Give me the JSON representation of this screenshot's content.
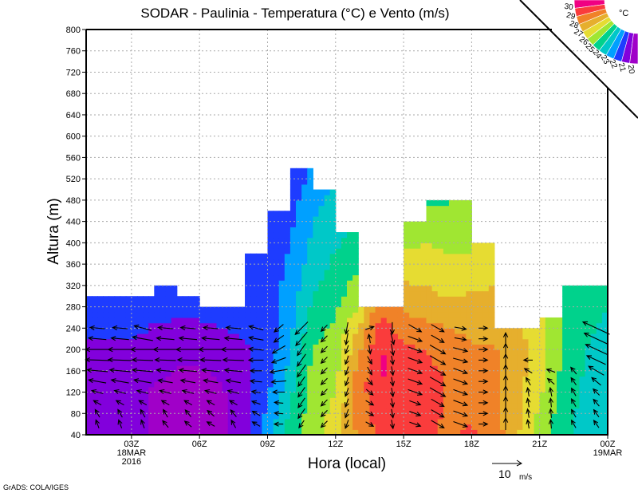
{
  "chart_data": {
    "type": "heatmap",
    "title": "SODAR - Paulinia - Temperatura (°C) e Vento (m/s)",
    "xlabel": "Hora (local)",
    "ylabel": "Altura (m)",
    "ylim": [
      40,
      800
    ],
    "xlim_hours": [
      1,
      24
    ],
    "yticks": [
      40,
      80,
      120,
      160,
      200,
      240,
      280,
      320,
      360,
      400,
      440,
      480,
      520,
      560,
      600,
      640,
      680,
      720,
      760,
      800
    ],
    "xticks": [
      {
        "hour": 3,
        "label": "03Z",
        "sub1": "18MAR",
        "sub2": "2016"
      },
      {
        "hour": 6,
        "label": "06Z"
      },
      {
        "hour": 9,
        "label": "09Z"
      },
      {
        "hour": 12,
        "label": "12Z"
      },
      {
        "hour": 15,
        "label": "15Z"
      },
      {
        "hour": 18,
        "label": "18Z"
      },
      {
        "hour": 21,
        "label": "21Z"
      },
      {
        "hour": 24,
        "label": "00Z",
        "sub1": "19MAR"
      }
    ],
    "grid": true,
    "colorbar": {
      "units": "°C",
      "levels": [
        20,
        21,
        22,
        23,
        24,
        25,
        26,
        27,
        28,
        29,
        30
      ],
      "colors": [
        "#a000c8",
        "#8200dc",
        "#1e3cff",
        "#00a0ff",
        "#00c8c8",
        "#00d28c",
        "#a0e632",
        "#e6dc32",
        "#e6af2d",
        "#f08228",
        "#fa3c3c",
        "#f00082"
      ]
    },
    "column_tops_m": [
      300,
      300,
      300,
      320,
      300,
      280,
      280,
      380,
      460,
      540,
      500,
      420,
      280,
      280,
      440,
      480,
      480,
      400,
      240,
      240,
      260,
      320,
      320
    ],
    "temperature_heights_m": [
      40,
      80,
      120,
      160,
      200,
      240,
      280,
      320,
      360,
      400,
      440,
      480,
      520,
      560
    ],
    "temperature": [
      [
        20.5,
        20.5,
        20.5,
        20.5,
        20.6,
        21.3,
        21.5,
        21.5,
        21.5,
        21.5,
        21.5,
        21.5,
        21.5,
        21.5
      ],
      [
        20.4,
        20.4,
        20.5,
        20.5,
        20.7,
        21.2,
        21.5,
        21.5,
        21.5,
        21.5,
        21.5,
        21.5,
        21.5,
        21.5
      ],
      [
        20.5,
        20.5,
        20.5,
        20.6,
        20.8,
        21.3,
        21.5,
        21.5,
        21.5,
        21.5,
        21.5,
        21.5,
        21.5,
        21.5
      ],
      [
        19.8,
        19.7,
        19.8,
        20.3,
        20.6,
        20.9,
        21.3,
        21.5,
        21.5,
        21.5,
        21.5,
        21.5,
        21.5,
        21.5
      ],
      [
        19.7,
        19.6,
        19.7,
        19.9,
        20.5,
        20.8,
        21.3,
        21.5,
        21.5,
        21.5,
        21.5,
        21.5,
        21.5,
        21.5
      ],
      [
        19.8,
        19.7,
        19.7,
        19.9,
        20.5,
        20.8,
        21.3,
        21.5,
        21.5,
        21.5,
        21.5,
        21.5,
        21.5,
        21.5
      ],
      [
        19.8,
        19.8,
        19.9,
        20.2,
        20.6,
        21.0,
        21.3,
        21.5,
        21.5,
        21.5,
        21.5,
        21.5,
        21.5,
        21.5
      ],
      [
        20.6,
        20.7,
        20.7,
        20.8,
        20.9,
        21.2,
        21.4,
        21.5,
        21.5,
        21.5,
        21.5,
        21.5,
        21.5,
        21.5
      ],
      [
        22.5,
        22.2,
        21.8,
        21.5,
        21.4,
        21.4,
        21.4,
        21.4,
        21.4,
        21.4,
        21.4,
        21.3,
        21.2,
        21.2
      ],
      [
        24.5,
        24.2,
        23.8,
        23.3,
        23.0,
        22.8,
        22.6,
        22.4,
        22.2,
        22.0,
        21.8,
        21.6,
        21.5,
        21.4
      ],
      [
        25.5,
        25.5,
        25.4,
        25.3,
        25.0,
        24.6,
        24.2,
        23.8,
        23.5,
        23.2,
        23.0,
        22.6,
        22.2,
        22.0
      ],
      [
        26.5,
        26.3,
        26.0,
        25.7,
        25.5,
        25.2,
        24.8,
        24.5,
        24.2,
        23.9,
        23.6,
        23.4,
        23.2,
        23.0
      ],
      [
        28.2,
        28.3,
        28.5,
        28.3,
        27.8,
        27.0,
        26.0,
        25.4,
        24.8,
        24.3,
        24.0,
        24.0,
        24.0,
        24.0
      ],
      [
        29.3,
        29.6,
        29.9,
        30.1,
        30.1,
        29.5,
        28.8,
        28.0,
        27.0,
        26.0,
        25.5,
        25.0,
        25.0,
        25.0
      ],
      [
        29.5,
        29.7,
        29.6,
        29.5,
        29.2,
        28.5,
        27.8,
        27.1,
        26.5,
        25.8,
        25.2,
        24.8,
        24.8,
        24.8
      ],
      [
        29.3,
        29.4,
        29.3,
        29.2,
        29.0,
        28.3,
        27.5,
        27.0,
        26.5,
        26.0,
        25.3,
        24.8,
        24.8,
        24.8
      ],
      [
        28.6,
        28.8,
        28.9,
        28.9,
        28.6,
        28.0,
        27.2,
        26.6,
        26.2,
        25.8,
        25.4,
        24.9,
        24.9,
        24.9
      ],
      [
        29.3,
        28.7,
        28.3,
        28.3,
        28.1,
        27.8,
        27.4,
        26.8,
        26.3,
        25.8,
        25.5,
        25.5,
        25.5,
        25.5
      ],
      [
        28.5,
        28.4,
        28.3,
        28.3,
        28.1,
        27.8,
        27.4,
        27.0,
        27.0,
        27.0,
        27.0,
        27.0,
        27.0,
        27.0
      ],
      [
        27.2,
        27.2,
        27.3,
        27.4,
        27.5,
        27.2,
        27.0,
        27.0,
        27.0,
        27.0,
        27.0,
        27.0,
        27.0,
        27.0
      ],
      [
        25.5,
        25.8,
        26.2,
        26.4,
        26.5,
        26.4,
        26.2,
        26.0,
        26.0,
        26.0,
        26.0,
        26.0,
        26.0,
        26.0
      ],
      [
        24.3,
        24.5,
        24.7,
        24.8,
        24.9,
        25.0,
        24.9,
        24.8,
        24.8,
        24.8,
        24.8,
        24.8,
        24.8,
        24.8
      ],
      [
        23.5,
        23.6,
        23.8,
        23.9,
        24.0,
        24.2,
        24.4,
        24.5,
        24.5,
        24.5,
        24.5,
        24.5,
        24.5,
        24.5
      ],
      [
        23.0,
        23.1,
        23.3,
        23.4,
        23.6,
        23.8,
        24.0,
        24.1,
        24.1,
        24.1,
        24.1,
        24.1,
        24.1,
        24.1
      ]
    ],
    "wind_heights_m": [
      60,
      80,
      100,
      120,
      140,
      160,
      180,
      200,
      220,
      240
    ],
    "wind": [
      {
        "hour": 1,
        "dir": [
          110,
          120,
          150,
          165,
          170,
          175,
          178,
          180,
          175,
          175
        ],
        "speed": [
          3,
          3,
          3,
          4,
          6,
          7,
          8,
          8,
          6,
          5
        ]
      },
      {
        "hour": 2,
        "dir": [
          110,
          120,
          150,
          165,
          170,
          175,
          178,
          180,
          175,
          175
        ],
        "speed": [
          3,
          3,
          3,
          4,
          6,
          7,
          8,
          8,
          6,
          5
        ]
      },
      {
        "hour": 3,
        "dir": [
          110,
          120,
          150,
          165,
          170,
          175,
          178,
          180,
          170,
          165
        ],
        "speed": [
          3,
          3,
          3,
          4,
          6,
          7,
          7,
          8,
          7,
          6
        ]
      },
      {
        "hour": 4,
        "dir": [
          130,
          120,
          150,
          165,
          170,
          175,
          178,
          180,
          175,
          175
        ],
        "speed": [
          3,
          3,
          3,
          4,
          5,
          6,
          7,
          8,
          6,
          5
        ]
      },
      {
        "hour": 5,
        "dir": [
          140,
          130,
          150,
          165,
          170,
          175,
          178,
          180,
          175,
          175
        ],
        "speed": [
          3,
          3,
          3,
          4,
          5,
          6,
          7,
          8,
          6,
          5
        ]
      },
      {
        "hour": 6,
        "dir": [
          150,
          140,
          150,
          165,
          170,
          175,
          178,
          180,
          175,
          175
        ],
        "speed": [
          3,
          3,
          3,
          4,
          5,
          6,
          7,
          8,
          6,
          5
        ]
      },
      {
        "hour": 7,
        "dir": [
          120,
          130,
          150,
          165,
          170,
          175,
          178,
          180,
          175,
          175
        ],
        "speed": [
          3,
          3,
          3,
          4,
          5,
          6,
          7,
          8,
          6,
          5
        ]
      },
      {
        "hour": 8,
        "dir": [
          150,
          150,
          160,
          170,
          175,
          180,
          180,
          175,
          170,
          165
        ],
        "speed": [
          3,
          3,
          3,
          3,
          4,
          4,
          5,
          5,
          5,
          5
        ]
      },
      {
        "hour": 9,
        "dir": [
          180,
          175,
          175,
          180,
          185,
          190,
          200,
          210,
          215,
          220
        ],
        "speed": [
          3,
          3,
          3,
          4,
          5,
          6,
          5,
          5,
          4,
          4
        ]
      },
      {
        "hour": 10,
        "dir": [
          235,
          235,
          235,
          235,
          235,
          235,
          235,
          235,
          230,
          225
        ],
        "speed": [
          3,
          4,
          4,
          4,
          4,
          5,
          5,
          5,
          6,
          6
        ]
      },
      {
        "hour": 11,
        "dir": [
          225,
          225,
          225,
          225,
          225,
          225,
          225,
          225,
          225,
          225
        ],
        "speed": [
          3,
          3,
          3,
          3,
          3,
          3,
          3,
          3,
          3,
          3
        ]
      },
      {
        "hour": 12,
        "dir": [
          250,
          250,
          250,
          250,
          250,
          250,
          250,
          250,
          260,
          260
        ],
        "speed": [
          3,
          3,
          3,
          3,
          3,
          3,
          3,
          3,
          4,
          4
        ]
      },
      {
        "hour": 13,
        "dir": [
          330,
          330,
          330,
          320,
          310,
          300,
          300,
          280,
          100,
          20
        ],
        "speed": [
          3,
          3,
          3,
          3,
          3,
          3,
          3,
          3,
          3,
          3
        ]
      },
      {
        "hour": 14,
        "dir": [
          280,
          280,
          280,
          280,
          280,
          280,
          280,
          280,
          285,
          270
        ],
        "speed": [
          3,
          3,
          3,
          3,
          3,
          3,
          3,
          4,
          4,
          4
        ]
      },
      {
        "hour": 15,
        "dir": [
          340,
          340,
          340,
          340,
          340,
          340,
          340,
          340,
          340,
          330
        ],
        "speed": [
          4,
          4,
          4,
          5,
          5,
          5,
          5,
          5,
          5,
          5
        ]
      },
      {
        "hour": 16,
        "dir": [
          330,
          330,
          330,
          330,
          330,
          330,
          330,
          330,
          330,
          330
        ],
        "speed": [
          5,
          5,
          5,
          6,
          6,
          6,
          6,
          6,
          5,
          5
        ]
      },
      {
        "hour": 17,
        "dir": [
          340,
          340,
          340,
          340,
          340,
          340,
          345,
          345,
          350,
          350
        ],
        "speed": [
          5,
          5,
          5,
          5,
          5,
          5,
          5,
          5,
          4,
          4
        ]
      },
      {
        "hour": 18,
        "dir": [
          0,
          0,
          0,
          0,
          0,
          0,
          0,
          0,
          0,
          0
        ],
        "speed": [
          3,
          3,
          3,
          3,
          3,
          3,
          3,
          3,
          3,
          3
        ]
      },
      {
        "hour": 19,
        "dir": [
          90,
          90,
          90,
          90,
          90,
          90,
          90,
          90,
          90,
          90
        ],
        "speed": [
          4,
          4,
          4,
          4,
          4,
          4,
          4,
          4,
          4,
          4
        ]
      },
      {
        "hour": 20,
        "dir": [
          100,
          100,
          100,
          100,
          120,
          150,
          180,
          0,
          0,
          0
        ],
        "speed": [
          3,
          3,
          3,
          3,
          3,
          3,
          3,
          0,
          0,
          0
        ]
      },
      {
        "hour": 21,
        "dir": [
          95,
          95,
          95,
          100,
          140,
          160,
          90,
          95,
          95,
          95
        ],
        "speed": [
          3,
          3,
          3,
          3,
          3,
          3,
          0,
          0,
          0,
          0
        ]
      },
      {
        "hour": 22,
        "dir": [
          120,
          120,
          120,
          120,
          125,
          130,
          0,
          0,
          0,
          0
        ],
        "speed": [
          3,
          3,
          3,
          3,
          3,
          3,
          0,
          0,
          0,
          0
        ]
      },
      {
        "hour": 23,
        "dir": [
          125,
          125,
          130,
          135,
          140,
          150,
          155,
          155,
          155,
          155
        ],
        "speed": [
          3,
          3,
          3,
          3,
          4,
          6,
          7,
          8,
          9,
          10
        ]
      }
    ],
    "wind_reference": {
      "value": "10",
      "units": "m/s"
    },
    "credit": "GrADS: COLA/IGES"
  }
}
